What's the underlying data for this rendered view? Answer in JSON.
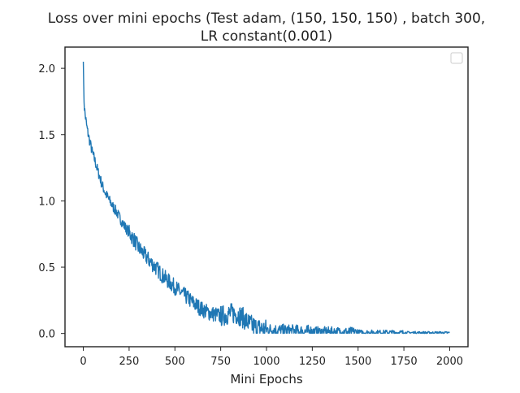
{
  "chart_data": {
    "type": "line",
    "title": "Loss over mini epochs (Test adam, (150, 150, 150) , batch 300,\nLR constant(0.001)",
    "xlabel": "Mini Epochs",
    "ylabel": "",
    "xlim": [
      -100,
      2100
    ],
    "ylim": [
      -0.1,
      2.16
    ],
    "xticks": [
      0,
      250,
      500,
      750,
      1000,
      1250,
      1500,
      1750,
      2000
    ],
    "yticks": [
      0.0,
      0.5,
      1.0,
      1.5,
      2.0
    ],
    "ytick_labels": [
      "0.0",
      "0.5",
      "1.0",
      "1.5",
      "2.0"
    ],
    "grid": false,
    "legend": "top-right (empty)",
    "series": [
      {
        "color": "#1f77b4",
        "x": [
          0,
          2,
          5,
          10,
          15,
          20,
          30,
          40,
          50,
          60,
          70,
          80,
          90,
          100,
          120,
          140,
          160,
          180,
          200,
          220,
          250,
          280,
          300,
          330,
          360,
          400,
          430,
          460,
          500,
          530,
          560,
          600,
          630,
          650,
          680,
          700,
          730,
          750,
          780,
          800,
          820,
          850,
          870,
          900,
          920,
          950,
          1000,
          1050,
          1100,
          1200,
          1300,
          1400,
          1500,
          1600,
          1700,
          1800,
          1900,
          2000
        ],
        "y": [
          2.05,
          1.85,
          1.72,
          1.65,
          1.6,
          1.55,
          1.48,
          1.42,
          1.36,
          1.32,
          1.27,
          1.22,
          1.18,
          1.13,
          1.06,
          1.01,
          0.96,
          0.92,
          0.87,
          0.82,
          0.76,
          0.7,
          0.65,
          0.6,
          0.55,
          0.49,
          0.44,
          0.4,
          0.35,
          0.31,
          0.28,
          0.23,
          0.2,
          0.18,
          0.16,
          0.15,
          0.14,
          0.13,
          0.14,
          0.15,
          0.15,
          0.14,
          0.12,
          0.08,
          0.06,
          0.04,
          0.03,
          0.025,
          0.02,
          0.015,
          0.012,
          0.01,
          0.008,
          0.007,
          0.006,
          0.006,
          0.005,
          0.005
        ],
        "noise": [
          0.04,
          0.06,
          0.06,
          0.08,
          0.05,
          0.04,
          0.02,
          0.01
        ]
      }
    ]
  }
}
